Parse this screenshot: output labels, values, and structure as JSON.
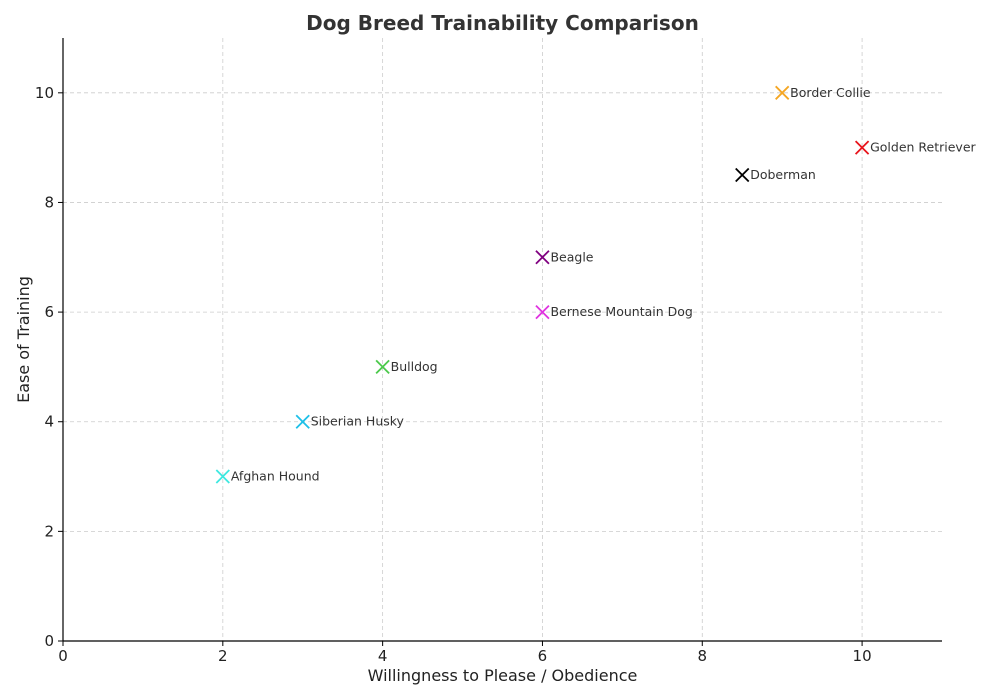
{
  "chart_data": {
    "type": "scatter",
    "title": "Dog Breed Trainability Comparison",
    "xlabel": "Willingness to Please / Obedience",
    "ylabel": "Ease of Training",
    "xlim": [
      0,
      11
    ],
    "ylim": [
      0,
      11
    ],
    "xticks": [
      0,
      2,
      4,
      6,
      8,
      10
    ],
    "yticks": [
      0,
      2,
      4,
      6,
      8,
      10
    ],
    "grid": true,
    "marker": "x",
    "points": [
      {
        "label": "Border Collie",
        "x": 9,
        "y": 10,
        "color": "#f5a623"
      },
      {
        "label": "Golden Retriever",
        "x": 10,
        "y": 9,
        "color": "#e8141c"
      },
      {
        "label": "Doberman",
        "x": 8.5,
        "y": 8.5,
        "color": "#000000"
      },
      {
        "label": "Beagle",
        "x": 6,
        "y": 7,
        "color": "#800080"
      },
      {
        "label": "Bernese Mountain Dog",
        "x": 6,
        "y": 6,
        "color": "#e033e0"
      },
      {
        "label": "Bulldog",
        "x": 4,
        "y": 5,
        "color": "#4cc94c"
      },
      {
        "label": "Siberian Husky",
        "x": 3,
        "y": 4,
        "color": "#1ec0e8"
      },
      {
        "label": "Afghan Hound",
        "x": 2,
        "y": 3,
        "color": "#3de8e0"
      }
    ]
  }
}
